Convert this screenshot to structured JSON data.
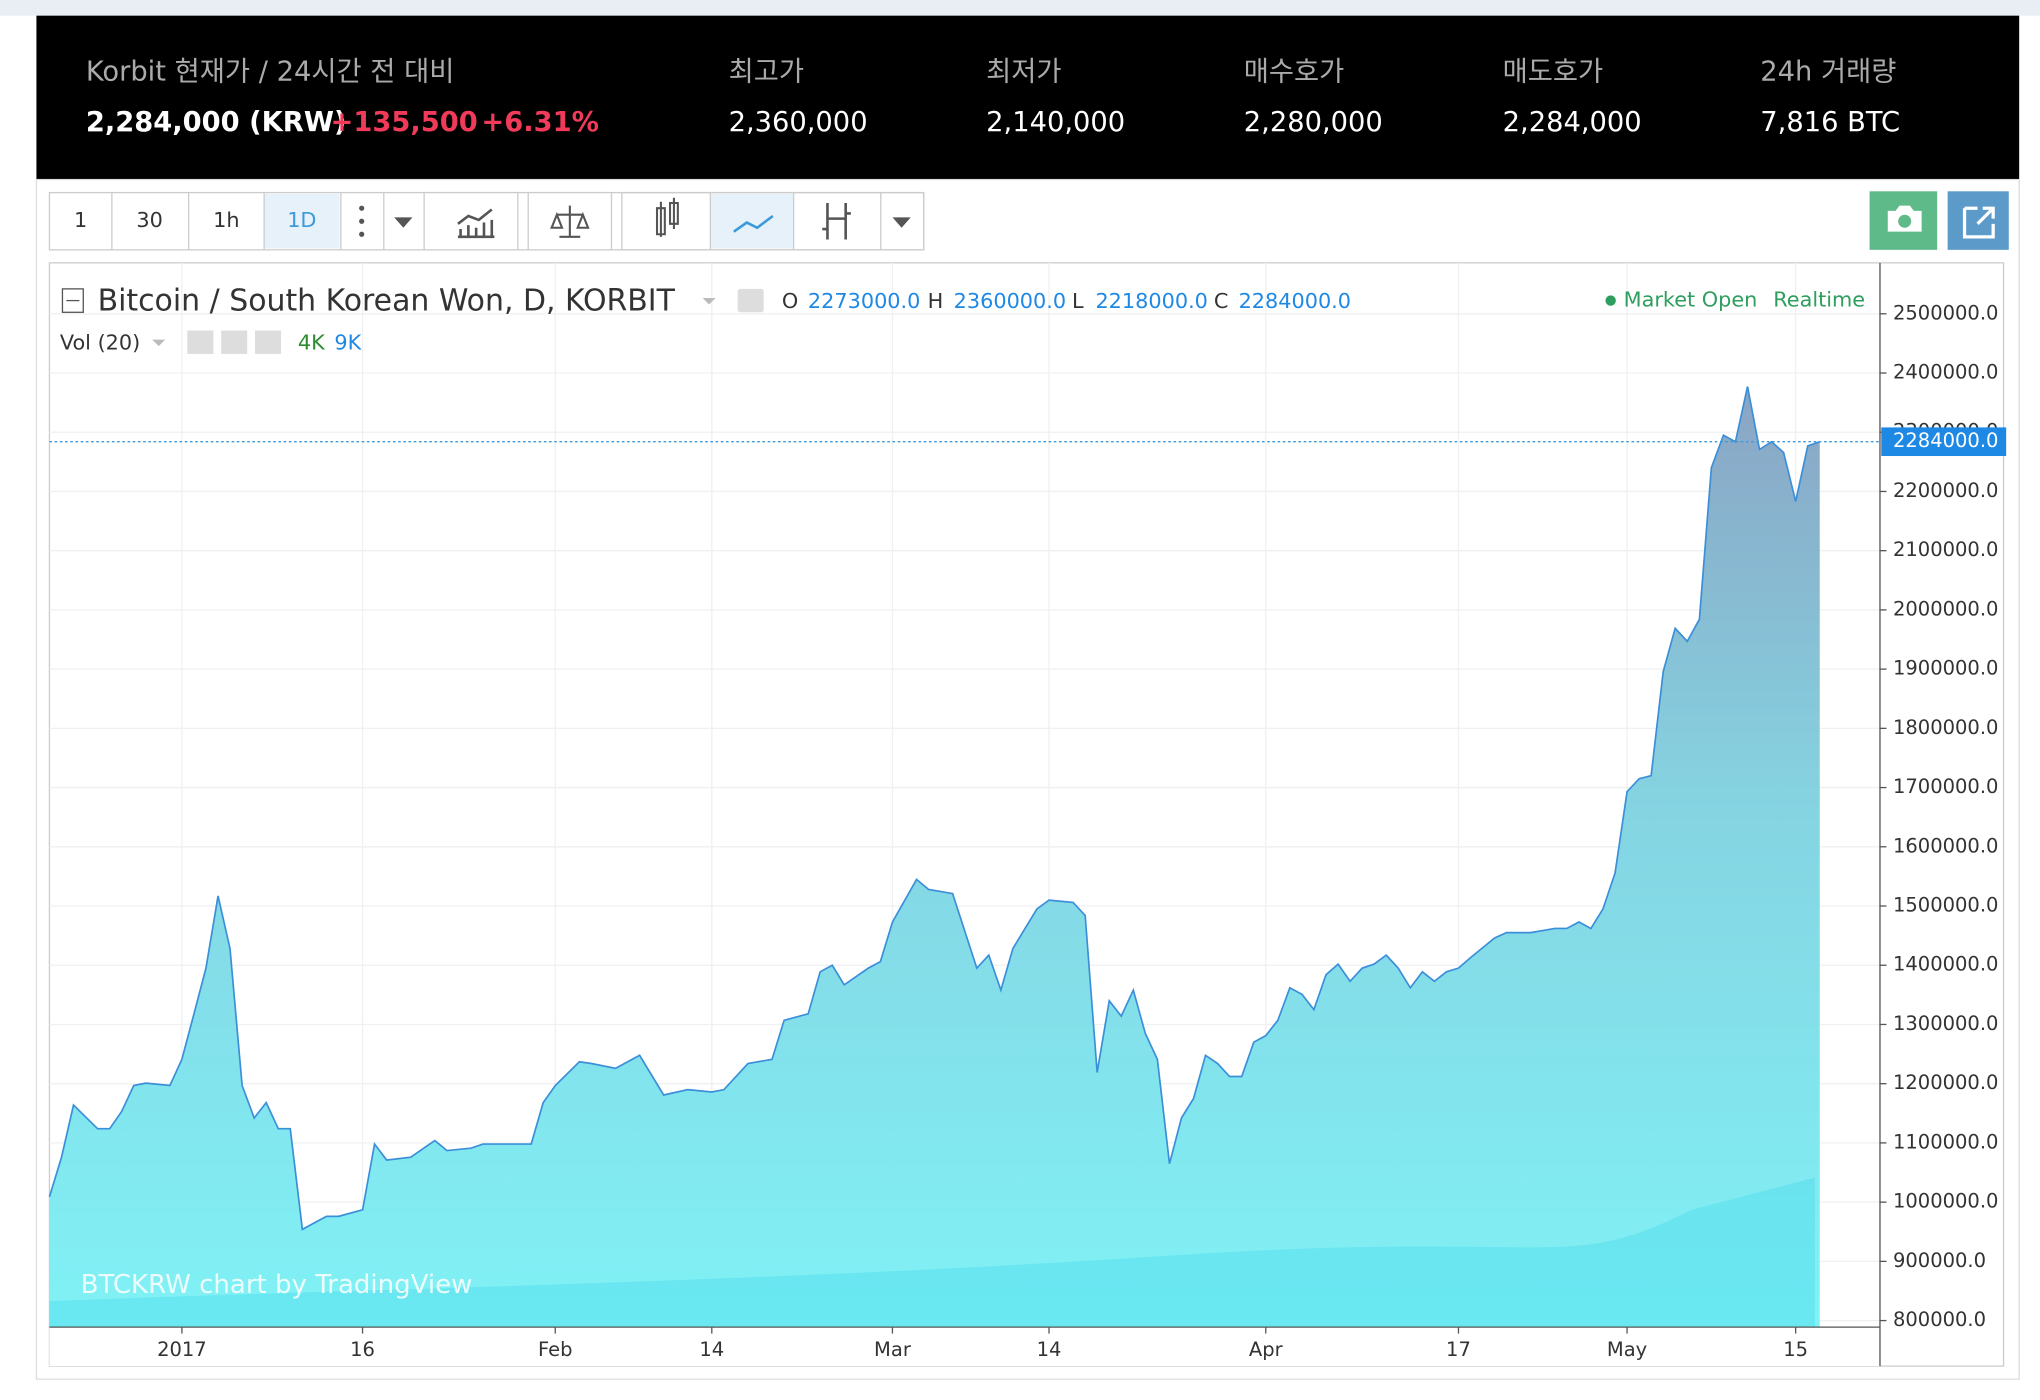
{
  "header": {
    "title": "Korbit 현재가 / 24시간 전 대비",
    "price": "2,284,000 (KRW)",
    "change": "+135,500",
    "change_pct": "+6.31%",
    "stats": [
      {
        "label": "최고가",
        "value": "2,360,000"
      },
      {
        "label": "최저가",
        "value": "2,140,000"
      },
      {
        "label": "매수호가",
        "value": "2,280,000"
      },
      {
        "label": "매도호가",
        "value": "2,284,000"
      },
      {
        "label": "24h 거래량",
        "value": "7,816 BTC"
      }
    ]
  },
  "toolbar": {
    "intervals": [
      "1",
      "30",
      "1h",
      "1D"
    ]
  },
  "legend": {
    "symbol": "Bitcoin / South Korean Won, D, KORBIT",
    "ohlc": [
      {
        "k": "O",
        "v": "2273000.0"
      },
      {
        "k": "H",
        "v": "2360000.0"
      },
      {
        "k": "L",
        "v": "2218000.0"
      },
      {
        "k": "C",
        "v": "2284000.0"
      }
    ],
    "volume": "Vol (20)",
    "vol_values": [
      "4K",
      "9K"
    ],
    "status": "Market Open",
    "mode": "Realtime"
  },
  "chart_data": {
    "type": "area",
    "watermark": "BTCKRW chart by TradingView",
    "color": "#3b8fd9",
    "x": [
      -11,
      -10,
      -9,
      -7,
      -6,
      -5,
      -4,
      -3,
      -1,
      0,
      1,
      2,
      3,
      4,
      5,
      6,
      7,
      8,
      9,
      10,
      11,
      12,
      13,
      15,
      16,
      17,
      19,
      21,
      22,
      24,
      25,
      27,
      29,
      30,
      31,
      33,
      34,
      36,
      38,
      40,
      42,
      44,
      45,
      47,
      49,
      50,
      52,
      53,
      54,
      55,
      57,
      58,
      59,
      61,
      62,
      64,
      66,
      67,
      68,
      69,
      71,
      72,
      74,
      75,
      76,
      77,
      78,
      79,
      80,
      81,
      82,
      83,
      84,
      85,
      86,
      87,
      88,
      89,
      90,
      91,
      92,
      93,
      94,
      95,
      96,
      97,
      98,
      99,
      100,
      101,
      102,
      103,
      104,
      105,
      106,
      107,
      109,
      110,
      111,
      112,
      114,
      115,
      116,
      117,
      118,
      119,
      120,
      121,
      122,
      123,
      124,
      125,
      126,
      127,
      128,
      129,
      130,
      131,
      132,
      133,
      134,
      135,
      136
    ],
    "values": [
      1009000,
      1076000,
      1164000,
      1124000,
      1124000,
      1153000,
      1197000,
      1201000,
      1197000,
      1241000,
      1318000,
      1395000,
      1517000,
      1428000,
      1197000,
      1142000,
      1168000,
      1124000,
      1124000,
      954000,
      965000,
      976000,
      976000,
      987000,
      1098000,
      1071000,
      1076000,
      1104000,
      1087000,
      1091000,
      1098000,
      1098000,
      1098000,
      1168000,
      1197000,
      1237000,
      1234000,
      1226000,
      1248000,
      1181000,
      1190000,
      1186000,
      1190000,
      1234000,
      1241000,
      1307000,
      1318000,
      1389000,
      1400000,
      1367000,
      1395000,
      1406000,
      1473000,
      1545000,
      1528000,
      1521000,
      1395000,
      1417000,
      1358000,
      1428000,
      1495000,
      1510000,
      1506000,
      1484000,
      1219000,
      1340000,
      1314000,
      1358000,
      1285000,
      1241000,
      1065000,
      1142000,
      1175000,
      1248000,
      1234000,
      1212000,
      1212000,
      1270000,
      1281000,
      1307000,
      1362000,
      1351000,
      1325000,
      1384000,
      1402000,
      1373000,
      1395000,
      1402000,
      1417000,
      1395000,
      1362000,
      1389000,
      1373000,
      1389000,
      1395000,
      1413000,
      1446000,
      1455000,
      1455000,
      1455000,
      1462000,
      1462000,
      1473000,
      1462000,
      1495000,
      1556000,
      1693000,
      1715000,
      1720000,
      1896000,
      1969000,
      1947000,
      1984000,
      2240000,
      2295000,
      2284000,
      2377000,
      2271000,
      2284000,
      2266000,
      2183000,
      2277000,
      2284000
    ],
    "xlim": [
      -11,
      141
    ],
    "xticks": [
      {
        "value": 0,
        "label": "2017"
      },
      {
        "value": 15,
        "label": "16"
      },
      {
        "value": 31,
        "label": "Feb"
      },
      {
        "value": 44,
        "label": "14"
      },
      {
        "value": 59,
        "label": "Mar"
      },
      {
        "value": 72,
        "label": "14"
      },
      {
        "value": 90,
        "label": "Apr"
      },
      {
        "value": 106,
        "label": "17"
      },
      {
        "value": 120,
        "label": "May"
      },
      {
        "value": 134,
        "label": "15"
      }
    ],
    "ylim": [
      789000,
      2586000
    ],
    "yticks": [
      {
        "value": 800000,
        "label": "800000.0"
      },
      {
        "value": 900000,
        "label": "900000.0"
      },
      {
        "value": 1000000,
        "label": "1000000.0"
      },
      {
        "value": 1100000,
        "label": "1100000.0"
      },
      {
        "value": 1200000,
        "label": "1200000.0"
      },
      {
        "value": 1300000,
        "label": "1300000.0"
      },
      {
        "value": 1400000,
        "label": "1400000.0"
      },
      {
        "value": 1500000,
        "label": "1500000.0"
      },
      {
        "value": 1600000,
        "label": "1600000.0"
      },
      {
        "value": 1700000,
        "label": "1700000.0"
      },
      {
        "value": 1800000,
        "label": "1800000.0"
      },
      {
        "value": 1900000,
        "label": "1900000.0"
      },
      {
        "value": 2000000,
        "label": "2000000.0"
      },
      {
        "value": 2100000,
        "label": "2100000.0"
      },
      {
        "value": 2200000,
        "label": "2200000.0"
      },
      {
        "value": 2300000,
        "label": "2300000.0"
      },
      {
        "value": 2400000,
        "label": "2400000.0"
      },
      {
        "value": 2500000,
        "label": "2500000.0"
      }
    ],
    "last_price": {
      "value": 2284000,
      "label": "2284000.0"
    },
    "grid": true
  }
}
